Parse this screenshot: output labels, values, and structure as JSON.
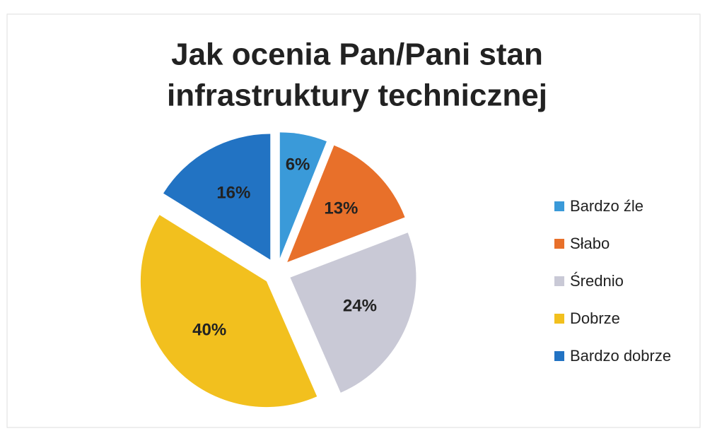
{
  "chart_data": {
    "type": "pie",
    "title": [
      "Jak ocenia Pan/Pani stan",
      "infrastruktury technicznej"
    ],
    "categories": [
      "Bardzo źle",
      "Słabo",
      "Średnio",
      "Dobrze",
      "Bardzo dobrze"
    ],
    "values": [
      6,
      13,
      24,
      40,
      16
    ],
    "value_labels": [
      "6%",
      "13%",
      "24%",
      "40%",
      "16%"
    ],
    "colors": [
      "#3a9ad9",
      "#e8702a",
      "#c9c9d6",
      "#f2c01e",
      "#2273c3"
    ],
    "legend": "right"
  }
}
